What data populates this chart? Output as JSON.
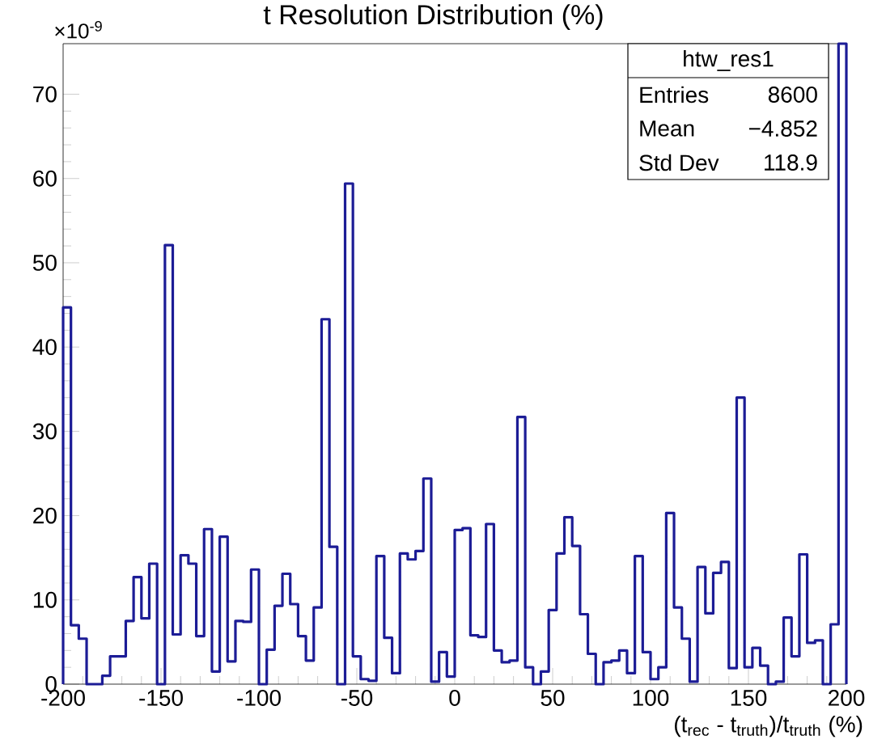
{
  "chart_data": {
    "type": "histogram",
    "title": "t Resolution Distribution (%)",
    "xlabel": "(t$_{rec}$ - t$_{truth}$)/t$_{truth}$ (%)",
    "bins": [
      -200,
      -196,
      -192,
      -188,
      -184,
      -180,
      -176,
      -172,
      -168,
      -164,
      -160,
      -156,
      -152,
      -148,
      -144,
      -140,
      -136,
      -132,
      -128,
      -124,
      -120,
      -116,
      -112,
      -108,
      -104,
      -100,
      -96,
      -92,
      -88,
      -84,
      -80,
      -76,
      -72,
      -68,
      -64,
      -60,
      -56,
      -52,
      -48,
      -44,
      -40,
      -36,
      -32,
      -28,
      -24,
      -20,
      -16,
      -12,
      -8,
      -4,
      0,
      4,
      8,
      12,
      16,
      20,
      24,
      28,
      32,
      36,
      40,
      44,
      48,
      52,
      56,
      60,
      64,
      68,
      72,
      76,
      80,
      84,
      88,
      92,
      96,
      100,
      104,
      108,
      112,
      116,
      120,
      124,
      128,
      132,
      136,
      140,
      144,
      148,
      152,
      156,
      160,
      164,
      168,
      172,
      176,
      180,
      184,
      188,
      192,
      196,
      200
    ],
    "values": [
      44.7,
      7.0,
      5.4,
      0,
      0,
      1.0,
      3.3,
      3.3,
      7.5,
      12.7,
      7.8,
      14.3,
      0,
      52.1,
      5.9,
      15.3,
      14.3,
      5.7,
      18.4,
      1.5,
      17.5,
      2.7,
      7.5,
      7.4,
      13.6,
      0,
      4.1,
      9.3,
      13.1,
      9.5,
      5.7,
      2.8,
      9.1,
      43.3,
      16.3,
      0,
      59.4,
      3.3,
      0.6,
      0.4,
      15.2,
      5.5,
      1.3,
      15.5,
      14.8,
      15.8,
      24.4,
      0.3,
      3.8,
      0.9,
      18.3,
      18.5,
      5.8,
      5.6,
      19.0,
      4.0,
      2.6,
      2.8,
      31.7,
      2.0,
      0,
      1.5,
      8.8,
      15.5,
      19.8,
      16.4,
      8.3,
      3.6,
      0,
      2.6,
      2.8,
      4.0,
      1.3,
      15.2,
      3.8,
      0.6,
      2.0,
      20.3,
      9.1,
      5.4,
      0.3,
      13.9,
      8.4,
      13.2,
      14.5,
      1.9,
      34.0,
      2.0,
      4.3,
      2.2,
      0,
      0.3,
      7.9,
      3.3,
      15.4,
      4.9,
      5.2,
      0,
      7.1,
      76
    ],
    "color": "#1c1c96",
    "xlim": [
      -200,
      200
    ],
    "xticks": [
      -200,
      -150,
      -100,
      -50,
      0,
      50,
      100,
      150,
      200
    ],
    "ylim": [
      0,
      76
    ],
    "yticks": [
      0,
      10,
      20,
      30,
      40,
      50,
      60,
      70
    ],
    "annotations": [
      "×10$^{-9}$",
      "htw_res1",
      "Entries",
      "8600",
      "Mean",
      "−4.852",
      "Std Dev",
      "118.9"
    ]
  }
}
